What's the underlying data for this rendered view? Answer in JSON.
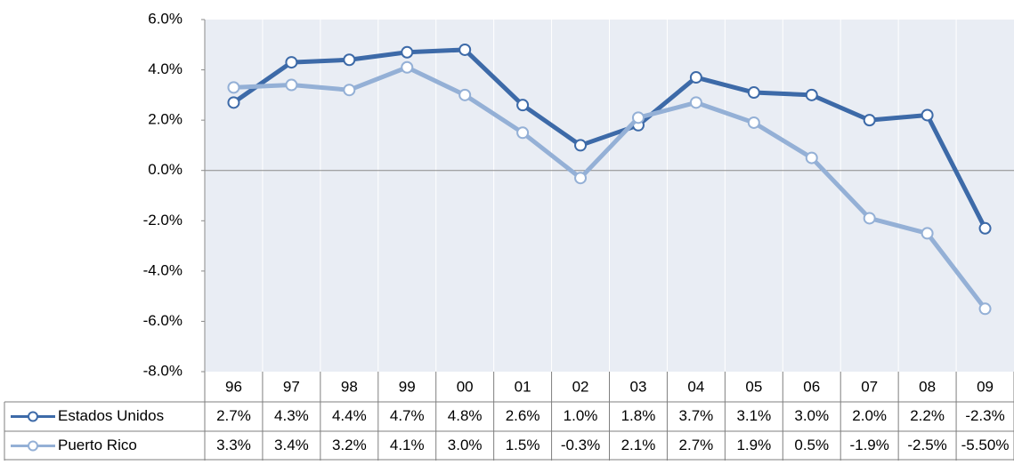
{
  "chart_data": {
    "type": "line",
    "categories": [
      "96",
      "97",
      "98",
      "99",
      "00",
      "01",
      "02",
      "03",
      "04",
      "05",
      "06",
      "07",
      "08",
      "09"
    ],
    "series": [
      {
        "name": "Estados Unidos",
        "color": "#3d6aa8",
        "values": [
          2.7,
          4.3,
          4.4,
          4.7,
          4.8,
          2.6,
          1.0,
          1.8,
          3.7,
          3.1,
          3.0,
          2.0,
          2.2,
          -2.3
        ],
        "value_labels": [
          "2.7%",
          "4.3%",
          "4.4%",
          "4.7%",
          "4.8%",
          "2.6%",
          "1.0%",
          "1.8%",
          "3.7%",
          "3.1%",
          "3.0%",
          "2.0%",
          "2.2%",
          "-2.3%"
        ]
      },
      {
        "name": "Puerto Rico",
        "color": "#94b0d6",
        "values": [
          3.3,
          3.4,
          3.2,
          4.1,
          3.0,
          1.5,
          -0.3,
          2.1,
          2.7,
          1.9,
          0.5,
          -1.9,
          -2.5,
          -5.5
        ],
        "value_labels": [
          "3.3%",
          "3.4%",
          "3.2%",
          "4.1%",
          "3.0%",
          "1.5%",
          "-0.3%",
          "2.1%",
          "2.7%",
          "1.9%",
          "0.5%",
          "-1.9%",
          "-2.5%",
          "-5.50%"
        ]
      }
    ],
    "ylim": [
      -8,
      6
    ],
    "yticks": [
      {
        "value": -8,
        "label": "-8.0%"
      },
      {
        "value": -6,
        "label": "-6.0%"
      },
      {
        "value": -4,
        "label": "-4.0%"
      },
      {
        "value": -2,
        "label": "-2.0%"
      },
      {
        "value": 0,
        "label": "0.0%"
      },
      {
        "value": 2,
        "label": "2.0%"
      },
      {
        "value": 4,
        "label": "4.0%"
      },
      {
        "value": 6,
        "label": "6.0%"
      }
    ]
  }
}
